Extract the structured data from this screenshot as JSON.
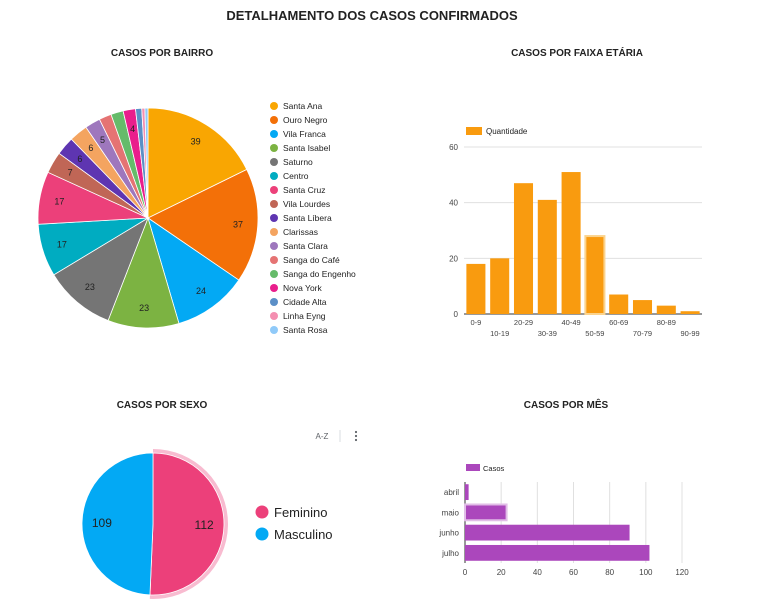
{
  "page": {
    "title": "DETALHAMENTO DOS CASOS CONFIRMADOS"
  },
  "toolbar": {
    "sort_icon_label": "A-Z",
    "menu_icon": "more-vertical-icon"
  },
  "chart_data": [
    {
      "id": "bairro",
      "type": "pie",
      "title": "CASOS POR BAIRRO",
      "legend_position": "right",
      "slices": [
        {
          "label": "Santa Ana",
          "value": 39,
          "display": "39",
          "color": "#f9a602"
        },
        {
          "label": "Ouro Negro",
          "value": 37,
          "display": "37",
          "color": "#f37008"
        },
        {
          "label": "Vila Franca",
          "value": 24,
          "display": "24",
          "color": "#03a9f4"
        },
        {
          "label": "Santa Isabel",
          "value": 23,
          "display": "23",
          "color": "#7cb342"
        },
        {
          "label": "Saturno",
          "value": 23,
          "display": "23",
          "color": "#757575"
        },
        {
          "label": "Centro",
          "value": 17,
          "display": "17",
          "color": "#00acc1"
        },
        {
          "label": "Santa Cruz",
          "value": 17,
          "display": "17",
          "color": "#ec407a"
        },
        {
          "label": "Vila Lourdes",
          "value": 7,
          "display": "7",
          "color": "#c06656"
        },
        {
          "label": "Santa Líbera",
          "value": 6,
          "display": "6",
          "color": "#5e35b1"
        },
        {
          "label": "Clarissas",
          "value": 6,
          "display": "6",
          "color": "#f4a460"
        },
        {
          "label": "Santa Clara",
          "value": 5,
          "display": "5",
          "color": "#9e77bd"
        },
        {
          "label": "Sanga do Café",
          "value": 4,
          "display": "",
          "color": "#e57373"
        },
        {
          "label": "Sanga do Engenho",
          "value": 4,
          "display": "",
          "color": "#66bb6a"
        },
        {
          "label": "Nova York",
          "value": 4,
          "display": "4",
          "color": "#e91e8c"
        },
        {
          "label": "Cidade Alta",
          "value": 2,
          "display": "",
          "color": "#5b8fc7"
        },
        {
          "label": "Linha Eyng",
          "value": 1,
          "display": "",
          "color": "#f48fb1"
        },
        {
          "label": "Santa Rosa",
          "value": 1,
          "display": "",
          "color": "#90caf9"
        }
      ]
    },
    {
      "id": "faixa",
      "type": "bar",
      "title": "CASOS POR FAIXA ETÁRIA",
      "legend": "Quantidade",
      "legend_position": "top-left",
      "color": "#f99b0f",
      "categories": [
        "0-9",
        "10-19",
        "20-29",
        "30-39",
        "40-49",
        "50-59",
        "60-69",
        "70-79",
        "80-89",
        "90-99"
      ],
      "values": [
        18,
        20,
        47,
        41,
        51,
        28,
        7,
        5,
        3,
        1
      ],
      "highlighted": "50-59",
      "ylim": [
        0,
        60
      ],
      "yticks": [
        0,
        20,
        40,
        60
      ],
      "grid": true
    },
    {
      "id": "sexo",
      "type": "pie",
      "title": "CASOS POR SEXO",
      "legend_position": "right",
      "slices": [
        {
          "label": "Feminino",
          "value": 112,
          "display": "112",
          "color": "#ec407a"
        },
        {
          "label": "Masculino",
          "value": 109,
          "display": "109",
          "color": "#03a9f4"
        }
      ],
      "highlighted": "Feminino"
    },
    {
      "id": "mes",
      "type": "bar",
      "orientation": "horizontal",
      "title": "CASOS POR MÊS",
      "legend": "Casos",
      "legend_position": "top-left",
      "color": "#ab47bc",
      "categories": [
        "abril",
        "maio",
        "junho",
        "julho"
      ],
      "values": [
        2,
        23,
        91,
        102
      ],
      "highlighted": "maio",
      "xlim": [
        0,
        120
      ],
      "xticks": [
        0,
        20,
        40,
        60,
        80,
        100,
        120
      ],
      "grid": true
    }
  ]
}
